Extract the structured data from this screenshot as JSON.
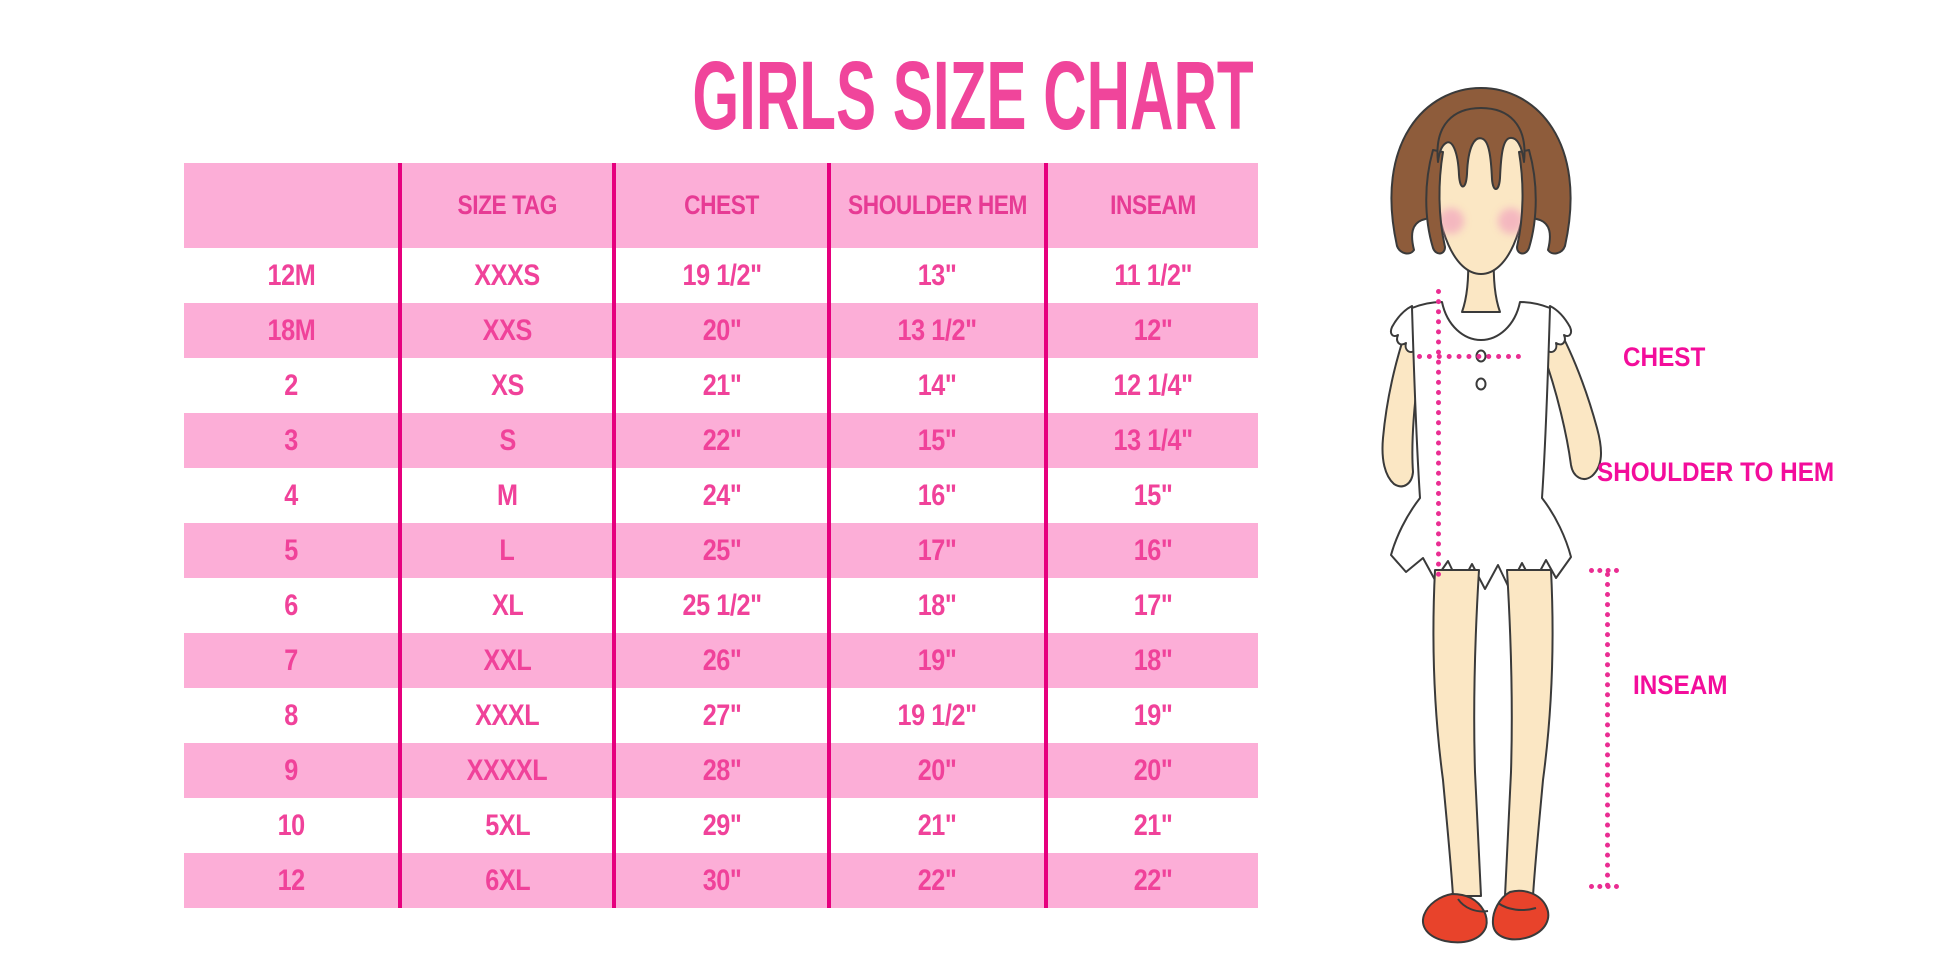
{
  "title": "GIRLS SIZE CHART",
  "chart_data": {
    "type": "table",
    "title": "GIRLS SIZE CHART",
    "columns": [
      "",
      "SIZE TAG",
      "CHEST",
      "SHOULDER HEM",
      "INSEAM"
    ],
    "rows": [
      [
        "12M",
        "XXXS",
        "19 1/2\"",
        "13\"",
        "11 1/2\""
      ],
      [
        "18M",
        "XXS",
        "20\"",
        "13 1/2\"",
        "12\""
      ],
      [
        "2",
        "XS",
        "21\"",
        "14\"",
        "12 1/4\""
      ],
      [
        "3",
        "S",
        "22\"",
        "15\"",
        "13 1/4\""
      ],
      [
        "4",
        "M",
        "24\"",
        "16\"",
        "15\""
      ],
      [
        "5",
        "L",
        "25\"",
        "17\"",
        "16\""
      ],
      [
        "6",
        "XL",
        "25 1/2\"",
        "18\"",
        "17\""
      ],
      [
        "7",
        "XXL",
        "26\"",
        "19\"",
        "18\""
      ],
      [
        "8",
        "XXXL",
        "27\"",
        "19 1/2\"",
        "19\""
      ],
      [
        "9",
        "XXXXL",
        "28\"",
        "20\"",
        "20\""
      ],
      [
        "10",
        "5XL",
        "29\"",
        "21\"",
        "21\""
      ],
      [
        "12",
        "6XL",
        "30\"",
        "22\"",
        "22\""
      ]
    ]
  },
  "figure": {
    "labels": {
      "chest": "CHEST",
      "shoulder_to_hem": "SHOULDER TO HEM",
      "inseam": "INSEAM"
    }
  },
  "colors": {
    "title_pink": "#F0459B",
    "row_pink": "#FCAED7",
    "line_magenta": "#E6007E",
    "cell_text": "#F0429A",
    "header_text": "#E73B94",
    "label_magenta": "#F30D9B",
    "dotted_pink": "#EA2D92",
    "hair_brown": "#8E5C3B",
    "skin": "#FBE7C4",
    "blush": "#F2A8BE",
    "shoe_red": "#E8432B"
  }
}
